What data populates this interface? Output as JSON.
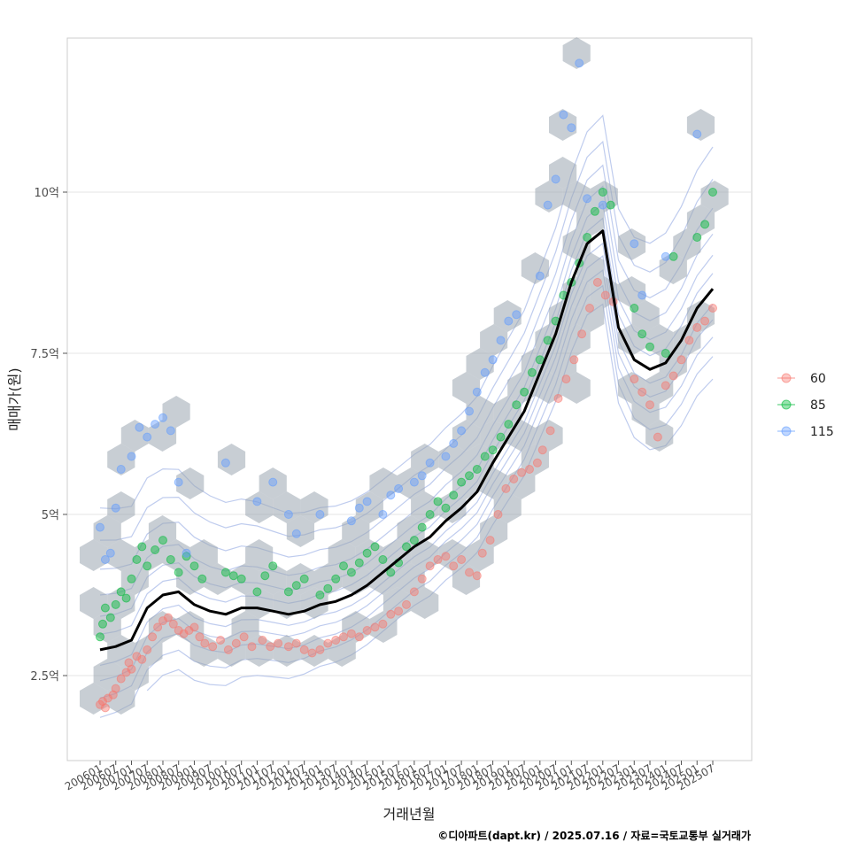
{
  "chart_data": {
    "type": "scatter",
    "xlabel": "거래년월",
    "ylabel": "매매가(원)",
    "caption": "©디아파트(dapt.kr) / 2025.07.16 / 자료=국토교통부 실거래가",
    "x_ticks": [
      "200601",
      "200607",
      "200701",
      "200707",
      "200801",
      "200807",
      "200901",
      "200907",
      "201001",
      "201007",
      "201101",
      "201107",
      "201201",
      "201207",
      "201301",
      "201307",
      "201401",
      "201407",
      "201501",
      "201507",
      "201601",
      "201607",
      "201701",
      "201707",
      "201801",
      "201807",
      "201901",
      "201907",
      "202001",
      "202007",
      "202101",
      "202107",
      "202201",
      "202207",
      "202301",
      "202307",
      "202401",
      "202407",
      "202501",
      "202507"
    ],
    "y_ticks": [
      {
        "value": 25000,
        "label": "2.5억"
      },
      {
        "value": 50000,
        "label": "5억"
      },
      {
        "value": 75000,
        "label": "7.5억"
      },
      {
        "value": 100000,
        "label": "10억"
      }
    ],
    "x_range": [
      "200601",
      "202507"
    ],
    "ylim": [
      12000,
      124000
    ],
    "grid": "horizontal",
    "legend_position": "right",
    "legend": [
      {
        "name": "60",
        "color": "#F8766D"
      },
      {
        "name": "85",
        "color": "#00BA38"
      },
      {
        "name": "115",
        "color": "#619CFF"
      }
    ],
    "hexbin_color": "#9aa5b1",
    "contour_color": "#8ba3e0",
    "median_line": {
      "color": "#000000",
      "x": [
        "200601",
        "200607",
        "200701",
        "200707",
        "200801",
        "200807",
        "200901",
        "200907",
        "201001",
        "201007",
        "201101",
        "201107",
        "201201",
        "201207",
        "201301",
        "201307",
        "201401",
        "201407",
        "201501",
        "201507",
        "201601",
        "201607",
        "201701",
        "201707",
        "201801",
        "201807",
        "201901",
        "201907",
        "202001",
        "202007",
        "202101",
        "202107",
        "202201",
        "202207",
        "202301",
        "202307",
        "202401",
        "202407",
        "202501",
        "202507"
      ],
      "y": [
        29000,
        29500,
        30500,
        35500,
        37500,
        38000,
        36000,
        35000,
        34500,
        35500,
        35500,
        35000,
        34500,
        35000,
        36000,
        36500,
        37500,
        39000,
        41000,
        43000,
        45000,
        46500,
        49000,
        51000,
        53500,
        58000,
        62000,
        66000,
        72000,
        78000,
        86000,
        92000,
        94000,
        79000,
        74000,
        72500,
        73500,
        77000,
        82000,
        85000
      ]
    },
    "series": [
      {
        "name": "60",
        "points": [
          [
            "200601",
            20500
          ],
          [
            "200602",
            21000
          ],
          [
            "200603",
            20000
          ],
          [
            "200604",
            21500
          ],
          [
            "200606",
            22000
          ],
          [
            "200607",
            23000
          ],
          [
            "200609",
            24500
          ],
          [
            "200611",
            25500
          ],
          [
            "200612",
            27000
          ],
          [
            "200701",
            26000
          ],
          [
            "200703",
            28000
          ],
          [
            "200705",
            27500
          ],
          [
            "200707",
            29000
          ],
          [
            "200709",
            31000
          ],
          [
            "200711",
            32500
          ],
          [
            "200801",
            33500
          ],
          [
            "200803",
            34000
          ],
          [
            "200805",
            33000
          ],
          [
            "200807",
            32000
          ],
          [
            "200809",
            31500
          ],
          [
            "200811",
            32000
          ],
          [
            "200901",
            32500
          ],
          [
            "200903",
            31000
          ],
          [
            "200905",
            30000
          ],
          [
            "200908",
            29500
          ],
          [
            "200911",
            30500
          ],
          [
            "201002",
            29000
          ],
          [
            "201005",
            30000
          ],
          [
            "201008",
            31000
          ],
          [
            "201011",
            29500
          ],
          [
            "201103",
            30500
          ],
          [
            "201106",
            29500
          ],
          [
            "201109",
            30000
          ],
          [
            "201201",
            29500
          ],
          [
            "201204",
            30000
          ],
          [
            "201207",
            29000
          ],
          [
            "201210",
            28500
          ],
          [
            "201301",
            29000
          ],
          [
            "201304",
            30000
          ],
          [
            "201307",
            30500
          ],
          [
            "201310",
            31000
          ],
          [
            "201401",
            31500
          ],
          [
            "201404",
            31000
          ],
          [
            "201407",
            32000
          ],
          [
            "201410",
            32500
          ],
          [
            "201501",
            33000
          ],
          [
            "201504",
            34500
          ],
          [
            "201507",
            35000
          ],
          [
            "201510",
            36000
          ],
          [
            "201601",
            38000
          ],
          [
            "201604",
            40000
          ],
          [
            "201607",
            42000
          ],
          [
            "201610",
            43000
          ],
          [
            "201701",
            43500
          ],
          [
            "201704",
            42000
          ],
          [
            "201707",
            43000
          ],
          [
            "201710",
            41000
          ],
          [
            "201801",
            40500
          ],
          [
            "201803",
            44000
          ],
          [
            "201806",
            46000
          ],
          [
            "201809",
            50000
          ],
          [
            "201812",
            54000
          ],
          [
            "201903",
            55500
          ],
          [
            "201906",
            56500
          ],
          [
            "201909",
            57000
          ],
          [
            "201912",
            58000
          ],
          [
            "202002",
            60000
          ],
          [
            "202005",
            63000
          ],
          [
            "202008",
            68000
          ],
          [
            "202011",
            71000
          ],
          [
            "202102",
            74000
          ],
          [
            "202105",
            78000
          ],
          [
            "202108",
            82000
          ],
          [
            "202111",
            86000
          ],
          [
            "202202",
            84000
          ],
          [
            "202205",
            83000
          ],
          [
            "202301",
            71000
          ],
          [
            "202304",
            69000
          ],
          [
            "202307",
            67000
          ],
          [
            "202310",
            62000
          ],
          [
            "202401",
            70000
          ],
          [
            "202404",
            71500
          ],
          [
            "202407",
            74000
          ],
          [
            "202410",
            77000
          ],
          [
            "202501",
            79000
          ],
          [
            "202504",
            80000
          ],
          [
            "202507",
            82000
          ]
        ]
      },
      {
        "name": "85",
        "points": [
          [
            "200601",
            31000
          ],
          [
            "200602",
            33000
          ],
          [
            "200603",
            35500
          ],
          [
            "200605",
            34000
          ],
          [
            "200607",
            36000
          ],
          [
            "200609",
            38000
          ],
          [
            "200611",
            37000
          ],
          [
            "200701",
            40000
          ],
          [
            "200703",
            43000
          ],
          [
            "200705",
            45000
          ],
          [
            "200707",
            42000
          ],
          [
            "200710",
            44500
          ],
          [
            "200801",
            46000
          ],
          [
            "200804",
            43000
          ],
          [
            "200807",
            41000
          ],
          [
            "200810",
            43500
          ],
          [
            "200901",
            42000
          ],
          [
            "200904",
            40000
          ],
          [
            "201001",
            41000
          ],
          [
            "201004",
            40500
          ],
          [
            "201007",
            40000
          ],
          [
            "201101",
            38000
          ],
          [
            "201104",
            40500
          ],
          [
            "201107",
            42000
          ],
          [
            "201201",
            38000
          ],
          [
            "201204",
            39000
          ],
          [
            "201207",
            40000
          ],
          [
            "201301",
            37500
          ],
          [
            "201304",
            38500
          ],
          [
            "201307",
            40000
          ],
          [
            "201310",
            42000
          ],
          [
            "201401",
            41000
          ],
          [
            "201404",
            42500
          ],
          [
            "201407",
            44000
          ],
          [
            "201410",
            45000
          ],
          [
            "201501",
            43000
          ],
          [
            "201504",
            41000
          ],
          [
            "201507",
            42500
          ],
          [
            "201510",
            45000
          ],
          [
            "201601",
            46000
          ],
          [
            "201604",
            48000
          ],
          [
            "201607",
            50000
          ],
          [
            "201610",
            52000
          ],
          [
            "201701",
            51000
          ],
          [
            "201704",
            53000
          ],
          [
            "201707",
            55000
          ],
          [
            "201710",
            56000
          ],
          [
            "201801",
            57000
          ],
          [
            "201804",
            59000
          ],
          [
            "201807",
            60000
          ],
          [
            "201810",
            62000
          ],
          [
            "201901",
            64000
          ],
          [
            "201904",
            67000
          ],
          [
            "201907",
            69000
          ],
          [
            "201910",
            72000
          ],
          [
            "202001",
            74000
          ],
          [
            "202004",
            77000
          ],
          [
            "202007",
            80000
          ],
          [
            "202010",
            84000
          ],
          [
            "202101",
            86000
          ],
          [
            "202104",
            89000
          ],
          [
            "202107",
            93000
          ],
          [
            "202110",
            97000
          ],
          [
            "202201",
            100000
          ],
          [
            "202204",
            98000
          ],
          [
            "202301",
            82000
          ],
          [
            "202304",
            78000
          ],
          [
            "202307",
            76000
          ],
          [
            "202401",
            75000
          ],
          [
            "202404",
            90000
          ],
          [
            "202501",
            93000
          ],
          [
            "202504",
            95000
          ],
          [
            "202507",
            100000
          ]
        ]
      },
      {
        "name": "115",
        "points": [
          [
            "200601",
            48000
          ],
          [
            "200603",
            43000
          ],
          [
            "200605",
            44000
          ],
          [
            "200607",
            51000
          ],
          [
            "200609",
            57000
          ],
          [
            "200701",
            59000
          ],
          [
            "200704",
            63500
          ],
          [
            "200707",
            62000
          ],
          [
            "200710",
            64000
          ],
          [
            "200801",
            65000
          ],
          [
            "200804",
            63000
          ],
          [
            "200807",
            55000
          ],
          [
            "200810",
            44000
          ],
          [
            "201001",
            58000
          ],
          [
            "201101",
            52000
          ],
          [
            "201107",
            55000
          ],
          [
            "201201",
            50000
          ],
          [
            "201204",
            47000
          ],
          [
            "201301",
            50000
          ],
          [
            "201401",
            49000
          ],
          [
            "201404",
            51000
          ],
          [
            "201407",
            52000
          ],
          [
            "201501",
            50000
          ],
          [
            "201504",
            53000
          ],
          [
            "201507",
            54000
          ],
          [
            "201601",
            55000
          ],
          [
            "201604",
            56000
          ],
          [
            "201607",
            58000
          ],
          [
            "201701",
            59000
          ],
          [
            "201704",
            61000
          ],
          [
            "201707",
            63000
          ],
          [
            "201710",
            66000
          ],
          [
            "201801",
            69000
          ],
          [
            "201804",
            72000
          ],
          [
            "201807",
            74000
          ],
          [
            "201810",
            77000
          ],
          [
            "201901",
            80000
          ],
          [
            "201904",
            81000
          ],
          [
            "202001",
            87000
          ],
          [
            "202004",
            98000
          ],
          [
            "202007",
            102000
          ],
          [
            "202010",
            112000
          ],
          [
            "202101",
            110000
          ],
          [
            "202104",
            120000
          ],
          [
            "202107",
            99000
          ],
          [
            "202201",
            98000
          ],
          [
            "202301",
            92000
          ],
          [
            "202304",
            84000
          ],
          [
            "202401",
            90000
          ],
          [
            "202501",
            109000
          ]
        ]
      }
    ]
  }
}
